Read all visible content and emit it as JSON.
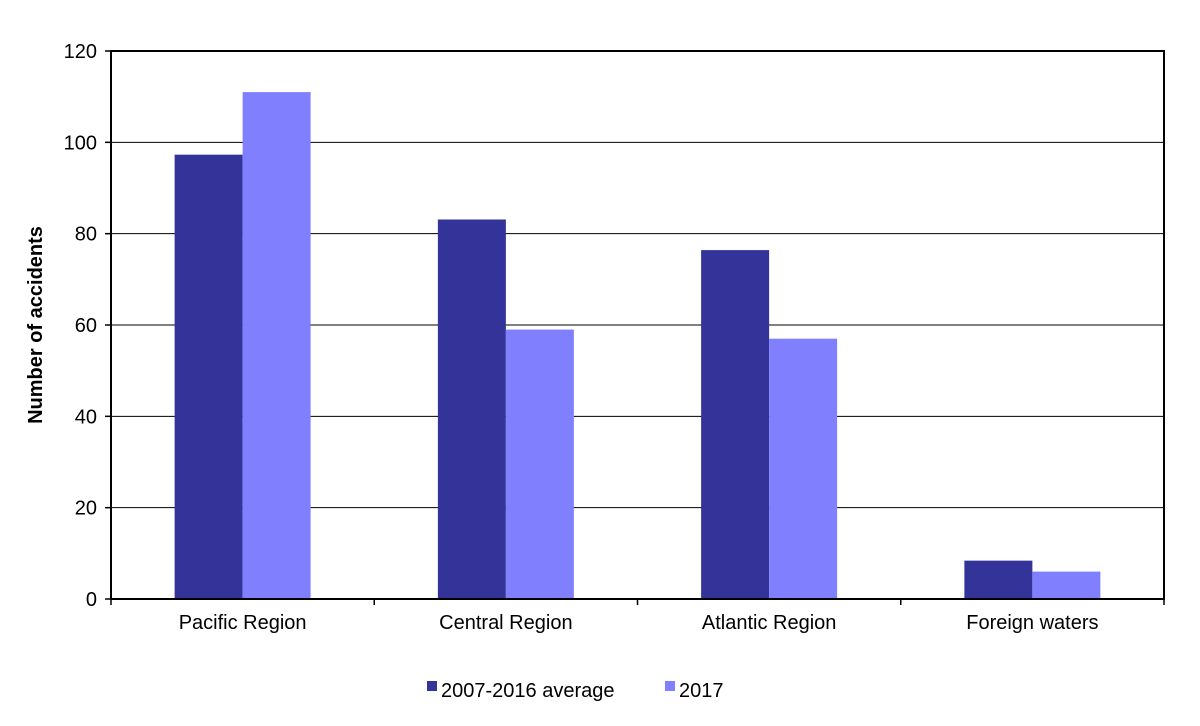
{
  "chart_data": {
    "type": "bar",
    "categories": [
      "Pacific Region",
      "Central Region",
      "Atlantic Region",
      "Foreign waters"
    ],
    "series": [
      {
        "name": "2007-2016 average",
        "values": [
          97.3,
          83.1,
          76.4,
          8.4
        ]
      },
      {
        "name": "2017",
        "values": [
          111,
          59,
          57,
          6
        ]
      }
    ],
    "colors": [
      "#333399",
      "#8080FF"
    ],
    "title": "",
    "xlabel": "",
    "ylabel": "Number of accidents",
    "ylim": [
      0,
      120
    ],
    "yticks": [
      "0",
      "20",
      "40",
      "60",
      "80",
      "100",
      "120"
    ],
    "grid": true,
    "legend_position": "bottom-center"
  }
}
